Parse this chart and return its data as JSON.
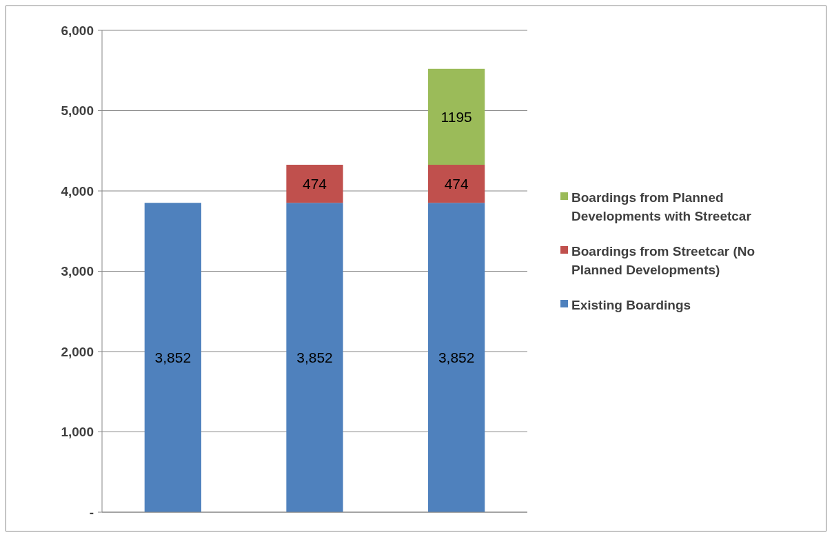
{
  "chart_data": {
    "type": "bar",
    "stacked": true,
    "categories": [
      null,
      null,
      null
    ],
    "series": [
      {
        "name": "Existing Boardings",
        "color": "#4f81bd",
        "values": [
          3852,
          3852,
          3852
        ],
        "value_labels": [
          "3,852",
          "3,852",
          "3,852"
        ]
      },
      {
        "name": "Boardings from Streetcar (No Planned Developments)",
        "color": "#c0504d",
        "values": [
          null,
          474,
          474
        ],
        "value_labels": [
          null,
          "474",
          "474"
        ]
      },
      {
        "name": "Boardings from Planned Developments with Streetcar",
        "color": "#9bbb59",
        "values": [
          null,
          null,
          1195
        ],
        "value_labels": [
          null,
          null,
          "1195"
        ]
      }
    ],
    "ylim": [
      0,
      6000
    ],
    "yticks": [
      {
        "value": 0,
        "label": "-"
      },
      {
        "value": 1000,
        "label": "1,000"
      },
      {
        "value": 2000,
        "label": "2,000"
      },
      {
        "value": 3000,
        "label": "3,000"
      },
      {
        "value": 4000,
        "label": "4,000"
      },
      {
        "value": 5000,
        "label": "5,000"
      },
      {
        "value": 6000,
        "label": "6,000"
      }
    ],
    "grid": "y",
    "legend": "right"
  }
}
